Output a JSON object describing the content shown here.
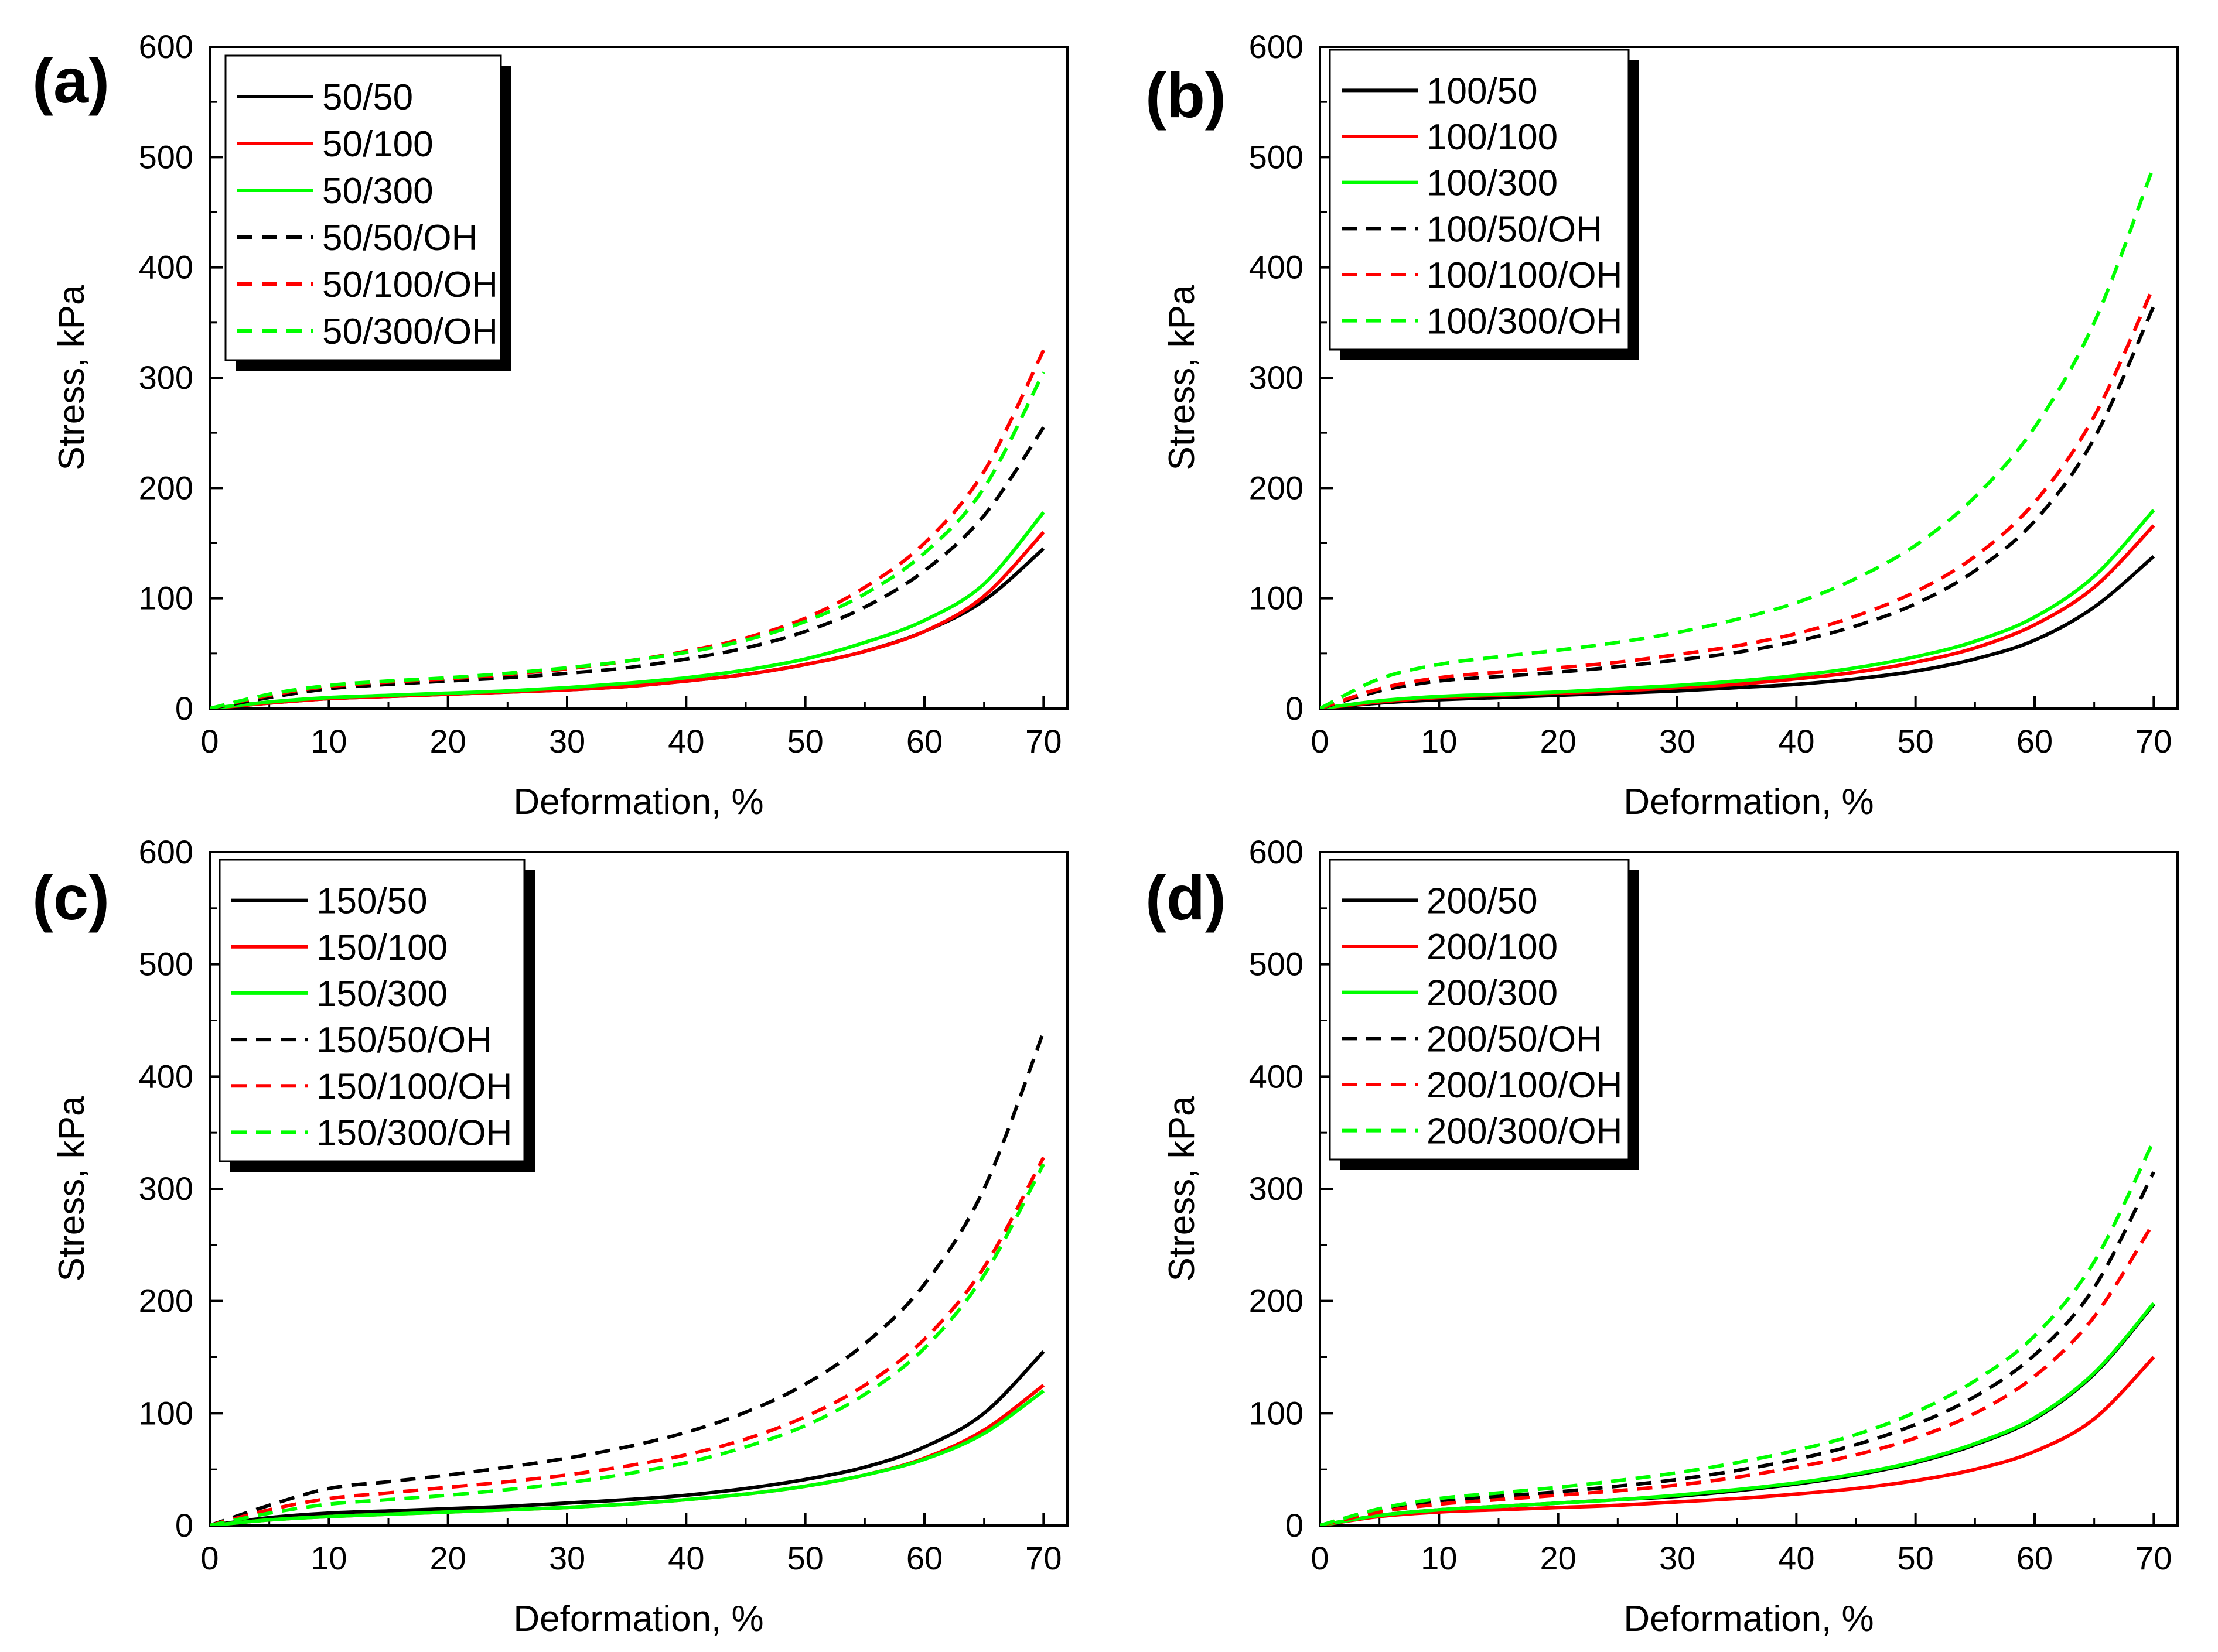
{
  "colors": {
    "black": "#000000",
    "red": "#ff0000",
    "green": "#00ff00"
  },
  "chart_data": [
    {
      "type": "line",
      "panel_label": "(a)",
      "xlabel": "Deformation, %",
      "ylabel": "Stress, kPa",
      "xlim": [
        0,
        72
      ],
      "ylim": [
        0,
        600
      ],
      "xticks": [
        0,
        10,
        20,
        30,
        40,
        50,
        60,
        70
      ],
      "yticks": [
        0,
        100,
        200,
        300,
        400,
        500,
        600
      ],
      "legend_position": "top-left",
      "x": [
        0,
        5,
        10,
        15,
        20,
        25,
        30,
        35,
        40,
        45,
        50,
        55,
        60,
        65,
        70
      ],
      "series": [
        {
          "name": "50/50",
          "color": "#000000",
          "dash": false,
          "values": [
            0,
            5,
            9,
            11,
            13,
            15,
            17,
            20,
            25,
            31,
            40,
            52,
            70,
            98,
            145
          ]
        },
        {
          "name": "50/100",
          "color": "#ff0000",
          "dash": false,
          "values": [
            0,
            5,
            9,
            11,
            13,
            15,
            17,
            20,
            25,
            31,
            40,
            52,
            70,
            102,
            160
          ]
        },
        {
          "name": "50/300",
          "color": "#00ff00",
          "dash": false,
          "values": [
            0,
            6,
            10,
            12,
            14,
            16,
            19,
            23,
            28,
            35,
            45,
            60,
            80,
            113,
            178
          ]
        },
        {
          "name": "50/50/OH",
          "color": "#000000",
          "dash": true,
          "values": [
            0,
            10,
            18,
            22,
            25,
            28,
            32,
            37,
            45,
            55,
            70,
            92,
            125,
            175,
            255
          ]
        },
        {
          "name": "50/100/OH",
          "color": "#ff0000",
          "dash": true,
          "values": [
            0,
            12,
            20,
            24,
            27,
            31,
            36,
            43,
            52,
            64,
            82,
            110,
            150,
            215,
            325
          ]
        },
        {
          "name": "50/300/OH",
          "color": "#00ff00",
          "dash": true,
          "values": [
            0,
            13,
            21,
            25,
            28,
            32,
            37,
            43,
            51,
            62,
            79,
            104,
            141,
            200,
            305
          ]
        }
      ]
    },
    {
      "type": "line",
      "panel_label": "(b)",
      "xlabel": "Deformation, %",
      "ylabel": "Stress, kPa",
      "xlim": [
        0,
        72
      ],
      "ylim": [
        0,
        600
      ],
      "xticks": [
        0,
        10,
        20,
        30,
        40,
        50,
        60,
        70
      ],
      "yticks": [
        0,
        100,
        200,
        300,
        400,
        500,
        600
      ],
      "legend_position": "top-left",
      "x": [
        0,
        5,
        10,
        15,
        20,
        25,
        30,
        35,
        40,
        45,
        50,
        55,
        60,
        65,
        70
      ],
      "series": [
        {
          "name": "100/50",
          "color": "#000000",
          "dash": false,
          "values": [
            0,
            5,
            8,
            10,
            12,
            14,
            16,
            19,
            22,
            27,
            34,
            45,
            62,
            92,
            138
          ]
        },
        {
          "name": "100/100",
          "color": "#ff0000",
          "dash": false,
          "values": [
            0,
            6,
            10,
            12,
            14,
            16,
            19,
            22,
            27,
            33,
            42,
            55,
            76,
            110,
            166
          ]
        },
        {
          "name": "100/300",
          "color": "#00ff00",
          "dash": false,
          "values": [
            0,
            7,
            11,
            13,
            15,
            18,
            21,
            25,
            30,
            37,
            47,
            61,
            83,
            120,
            180
          ]
        },
        {
          "name": "100/50/OH",
          "color": "#000000",
          "dash": true,
          "values": [
            0,
            16,
            25,
            29,
            33,
            38,
            44,
            51,
            61,
            75,
            95,
            125,
            170,
            245,
            365
          ]
        },
        {
          "name": "100/100/OH",
          "color": "#ff0000",
          "dash": true,
          "values": [
            0,
            18,
            28,
            33,
            37,
            42,
            49,
            57,
            68,
            84,
            106,
            138,
            187,
            265,
            383
          ]
        },
        {
          "name": "100/300/OH",
          "color": "#00ff00",
          "dash": true,
          "values": [
            0,
            27,
            40,
            47,
            53,
            60,
            69,
            81,
            96,
            118,
            148,
            192,
            255,
            350,
            492
          ]
        }
      ]
    },
    {
      "type": "line",
      "panel_label": "(c)",
      "xlabel": "Deformation, %",
      "ylabel": "Stress, kPa",
      "xlim": [
        0,
        72
      ],
      "ylim": [
        0,
        600
      ],
      "xticks": [
        0,
        10,
        20,
        30,
        40,
        50,
        60,
        70
      ],
      "yticks": [
        0,
        100,
        200,
        300,
        400,
        500,
        600
      ],
      "legend_position": "top-left",
      "x": [
        0,
        5,
        10,
        15,
        20,
        25,
        30,
        35,
        40,
        45,
        50,
        55,
        60,
        65,
        70
      ],
      "series": [
        {
          "name": "150/50",
          "color": "#000000",
          "dash": false,
          "values": [
            0,
            7,
            11,
            13,
            15,
            17,
            20,
            23,
            27,
            33,
            41,
            52,
            70,
            100,
            155
          ]
        },
        {
          "name": "150/100",
          "color": "#ff0000",
          "dash": false,
          "values": [
            0,
            5,
            8,
            10,
            12,
            14,
            16,
            19,
            23,
            28,
            35,
            45,
            60,
            85,
            125
          ]
        },
        {
          "name": "150/300",
          "color": "#00ff00",
          "dash": false,
          "values": [
            0,
            5,
            8,
            10,
            12,
            14,
            16,
            19,
            23,
            28,
            35,
            45,
            59,
            82,
            120
          ]
        },
        {
          "name": "150/50/OH",
          "color": "#000000",
          "dash": true,
          "values": [
            0,
            18,
            33,
            39,
            45,
            52,
            60,
            70,
            83,
            101,
            126,
            162,
            215,
            300,
            440
          ]
        },
        {
          "name": "150/100/OH",
          "color": "#ff0000",
          "dash": true,
          "values": [
            0,
            14,
            24,
            29,
            34,
            39,
            45,
            53,
            63,
            77,
            97,
            125,
            166,
            230,
            328
          ]
        },
        {
          "name": "150/300/OH",
          "color": "#00ff00",
          "dash": true,
          "values": [
            0,
            11,
            19,
            23,
            27,
            32,
            38,
            46,
            56,
            70,
            89,
            117,
            158,
            223,
            322
          ]
        }
      ]
    },
    {
      "type": "line",
      "panel_label": "(d)",
      "xlabel": "Deformation, %",
      "ylabel": "Stress, kPa",
      "xlim": [
        0,
        72
      ],
      "ylim": [
        0,
        600
      ],
      "xticks": [
        0,
        10,
        20,
        30,
        40,
        50,
        60,
        70
      ],
      "yticks": [
        0,
        100,
        200,
        300,
        400,
        500,
        600
      ],
      "legend_position": "top-left",
      "x": [
        0,
        5,
        10,
        15,
        20,
        25,
        30,
        35,
        40,
        45,
        50,
        55,
        60,
        65,
        70
      ],
      "series": [
        {
          "name": "200/50",
          "color": "#000000",
          "dash": false,
          "values": [
            0,
            9,
            14,
            17,
            20,
            23,
            26,
            31,
            37,
            45,
            56,
            72,
            95,
            135,
            197
          ]
        },
        {
          "name": "200/100",
          "color": "#ff0000",
          "dash": false,
          "values": [
            0,
            8,
            12,
            14,
            16,
            18,
            21,
            24,
            28,
            33,
            40,
            50,
            66,
            95,
            150
          ]
        },
        {
          "name": "200/300",
          "color": "#00ff00",
          "dash": false,
          "values": [
            0,
            9,
            14,
            17,
            20,
            23,
            27,
            32,
            38,
            46,
            57,
            73,
            96,
            136,
            198
          ]
        },
        {
          "name": "200/50/OH",
          "color": "#000000",
          "dash": true,
          "values": [
            0,
            14,
            22,
            26,
            30,
            35,
            41,
            49,
            59,
            72,
            90,
            115,
            152,
            212,
            315
          ]
        },
        {
          "name": "200/100/OH",
          "color": "#ff0000",
          "dash": true,
          "values": [
            0,
            12,
            19,
            23,
            27,
            31,
            36,
            43,
            52,
            63,
            78,
            100,
            133,
            186,
            270
          ]
        },
        {
          "name": "200/300/OH",
          "color": "#00ff00",
          "dash": true,
          "values": [
            0,
            15,
            24,
            29,
            34,
            40,
            47,
            56,
            67,
            81,
            101,
            129,
            169,
            235,
            343
          ]
        }
      ]
    }
  ]
}
